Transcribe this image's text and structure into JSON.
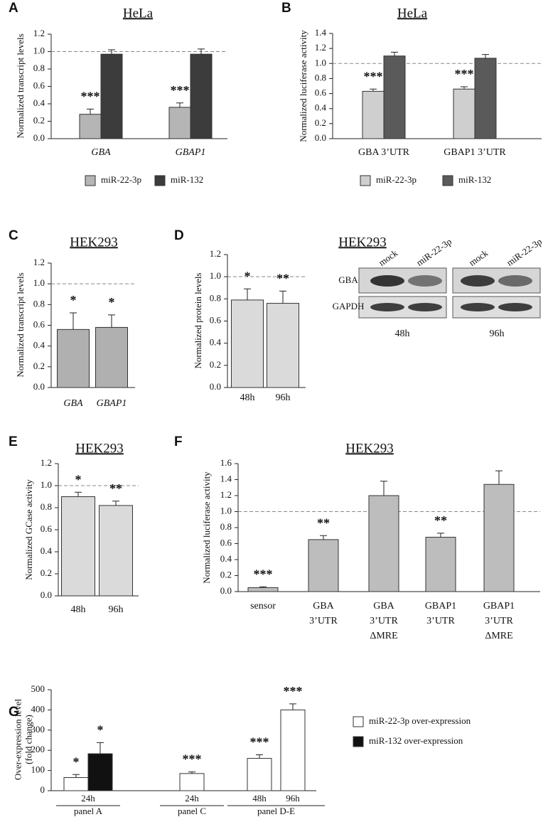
{
  "chart_data": [
    {
      "type": "bar",
      "panel_label": "A",
      "title": "HeLa",
      "y_label": [
        "Normalized transcript levels"
      ],
      "categories": [
        "GBA",
        "GBAP1"
      ],
      "italic_categories": true,
      "series": [
        {
          "name": "miR-22-3p",
          "color": "#b5b5b5",
          "values": [
            0.28,
            0.36
          ],
          "errors": [
            0.06,
            0.05
          ],
          "annotations": [
            "***",
            "***"
          ]
        },
        {
          "name": "miR-132",
          "color": "#3c3c3c",
          "values": [
            0.97,
            0.97
          ],
          "errors": [
            0.05,
            0.06
          ]
        }
      ],
      "ylim": [
        0,
        1.2
      ],
      "yticks": [
        {
          "value": 0,
          "label": "0.0"
        },
        {
          "value": 0.2,
          "label": "0.2"
        },
        {
          "value": 0.4,
          "label": "0.4"
        },
        {
          "value": 0.6,
          "label": "0.6"
        },
        {
          "value": 0.8,
          "label": "0.8"
        },
        {
          "value": 1,
          "label": "1.0"
        },
        {
          "value": 1.2,
          "label": "1.2"
        }
      ],
      "hline": 1,
      "legend": "bottom"
    },
    {
      "type": "bar",
      "panel_label": "B",
      "title": "HeLa",
      "y_label": [
        "Normalized luciferase activity"
      ],
      "categories": [
        "GBA 3’UTR",
        "GBAP1 3’UTR"
      ],
      "series": [
        {
          "name": "miR-22-3p",
          "color": "#cfcfcf",
          "values": [
            0.63,
            0.66
          ],
          "errors": [
            0.03,
            0.03
          ],
          "annotations": [
            "***",
            "***"
          ]
        },
        {
          "name": "miR-132",
          "color": "#5a5a5a",
          "values": [
            1.1,
            1.07
          ],
          "errors": [
            0.05,
            0.05
          ]
        }
      ],
      "ylim": [
        0,
        1.4
      ],
      "yticks": [
        {
          "value": 0,
          "label": "0.0"
        },
        {
          "value": 0.2,
          "label": "0.2"
        },
        {
          "value": 0.4,
          "label": "0.4"
        },
        {
          "value": 0.6,
          "label": "0.6"
        },
        {
          "value": 0.8,
          "label": "0.8"
        },
        {
          "value": 1,
          "label": "1.0"
        },
        {
          "value": 1.2,
          "label": "1.2"
        },
        {
          "value": 1.4,
          "label": "1.4"
        }
      ],
      "hline": 1,
      "legend": "bottom"
    },
    {
      "type": "bar",
      "panel_label": "C",
      "title": "HEK293",
      "y_label": [
        "Normalized transcript levels"
      ],
      "categories": [
        "GBA",
        "GBAP1"
      ],
      "italic_categories": true,
      "series": [
        {
          "color": "#b0b0b0",
          "values": [
            0.56,
            0.58
          ],
          "errors": [
            0.16,
            0.12
          ],
          "annotations": [
            "*",
            "*"
          ]
        }
      ],
      "ylim": [
        0,
        1.2
      ],
      "yticks": [
        {
          "value": 0,
          "label": "0.0"
        },
        {
          "value": 0.2,
          "label": "0.2"
        },
        {
          "value": 0.4,
          "label": "0.4"
        },
        {
          "value": 0.6,
          "label": "0.6"
        },
        {
          "value": 0.8,
          "label": "0.8"
        },
        {
          "value": 1,
          "label": "1.0"
        },
        {
          "value": 1.2,
          "label": "1.2"
        }
      ],
      "hline": 1
    },
    {
      "type": "bar",
      "panel_label": "D",
      "title": "HEK293",
      "y_label": [
        "Normalized protein levels"
      ],
      "categories": [
        "48h",
        "96h"
      ],
      "series": [
        {
          "color": "#dadada",
          "values": [
            0.79,
            0.76
          ],
          "errors": [
            0.1,
            0.11
          ],
          "annotations": [
            "*",
            "**"
          ]
        }
      ],
      "ylim": [
        0,
        1.2
      ],
      "yticks": [
        {
          "value": 0,
          "label": "0.0"
        },
        {
          "value": 0.2,
          "label": "0.2"
        },
        {
          "value": 0.4,
          "label": "0.4"
        },
        {
          "value": 0.6,
          "label": "0.6"
        },
        {
          "value": 0.8,
          "label": "0.8"
        },
        {
          "value": 1,
          "label": "1.0"
        },
        {
          "value": 1.2,
          "label": "1.2"
        }
      ],
      "hline": 1,
      "blot": {
        "lanes": [
          "mock",
          "miR-22-3p",
          "mock",
          "miR-22-3p"
        ],
        "rows": [
          "GBA",
          "GAPDH"
        ],
        "timepoints": [
          "48h",
          "96h"
        ]
      }
    },
    {
      "type": "bar",
      "panel_label": "E",
      "title": "HEK293",
      "y_label": [
        "Normalized GCase activity"
      ],
      "categories": [
        "48h",
        "96h"
      ],
      "series": [
        {
          "color": "#dadada",
          "values": [
            0.9,
            0.82
          ],
          "errors": [
            0.04,
            0.04
          ],
          "annotations": [
            "*",
            "**"
          ]
        }
      ],
      "ylim": [
        0,
        1.2
      ],
      "yticks": [
        {
          "value": 0,
          "label": "0.0"
        },
        {
          "value": 0.2,
          "label": "0.2"
        },
        {
          "value": 0.4,
          "label": "0.4"
        },
        {
          "value": 0.6,
          "label": "0.6"
        },
        {
          "value": 0.8,
          "label": "0.8"
        },
        {
          "value": 1,
          "label": "1.0"
        },
        {
          "value": 1.2,
          "label": "1.2"
        }
      ],
      "hline": 1
    },
    {
      "type": "bar",
      "panel_label": "F",
      "title": "HEK293",
      "y_label": [
        "Normalized luciferase activity"
      ],
      "categories": [
        [
          "sensor"
        ],
        [
          "GBA",
          "3’UTR"
        ],
        [
          "GBA",
          "3’UTR",
          "ΔMRE"
        ],
        [
          "GBAP1",
          "3’UTR"
        ],
        [
          "GBAP1",
          "3’UTR",
          "ΔMRE"
        ]
      ],
      "series": [
        {
          "color": "#bdbdbd",
          "values": [
            0.05,
            0.65,
            1.2,
            0.68,
            1.34
          ],
          "errors": [
            0.01,
            0.05,
            0.18,
            0.05,
            0.17
          ],
          "annotations": [
            "***",
            "**",
            null,
            "**",
            null
          ]
        }
      ],
      "ylim": [
        0,
        1.6
      ],
      "yticks": [
        {
          "value": 0,
          "label": "0.0"
        },
        {
          "value": 0.2,
          "label": "0.2"
        },
        {
          "value": 0.4,
          "label": "0.4"
        },
        {
          "value": 0.6,
          "label": "0.6"
        },
        {
          "value": 0.8,
          "label": "0.8"
        },
        {
          "value": 1,
          "label": "1.0"
        },
        {
          "value": 1.2,
          "label": "1.2"
        },
        {
          "value": 1.4,
          "label": "1.4"
        },
        {
          "value": 1.6,
          "label": "1.6"
        }
      ],
      "hline": 1
    },
    {
      "type": "bar",
      "panel_label": "G",
      "y_label": [
        "Over-expression level",
        "(fold change)"
      ],
      "groups": [
        {
          "label": "panel A",
          "categories": [
            "24h"
          ]
        },
        {
          "label": "panel C",
          "categories": [
            "24h"
          ]
        },
        {
          "label": "panel D-E",
          "categories": [
            "48h",
            "96h"
          ]
        }
      ],
      "series": [
        {
          "name": "miR-22-3p over-expression",
          "color": "#ffffff",
          "values": [
            65,
            85,
            160,
            400
          ],
          "errors": [
            15,
            8,
            18,
            30
          ],
          "annotations": [
            "*",
            "***",
            "***",
            "***"
          ]
        },
        {
          "name": "miR-132 over-expression",
          "color": "#111111",
          "values": [
            183,
            null,
            null,
            null
          ],
          "errors": [
            55,
            null,
            null,
            null
          ],
          "annotations": [
            "*",
            null,
            null,
            null
          ]
        }
      ],
      "ylim": [
        0,
        500
      ],
      "yticks": [
        0,
        100,
        200,
        300,
        400,
        500
      ],
      "legend": "right"
    }
  ]
}
